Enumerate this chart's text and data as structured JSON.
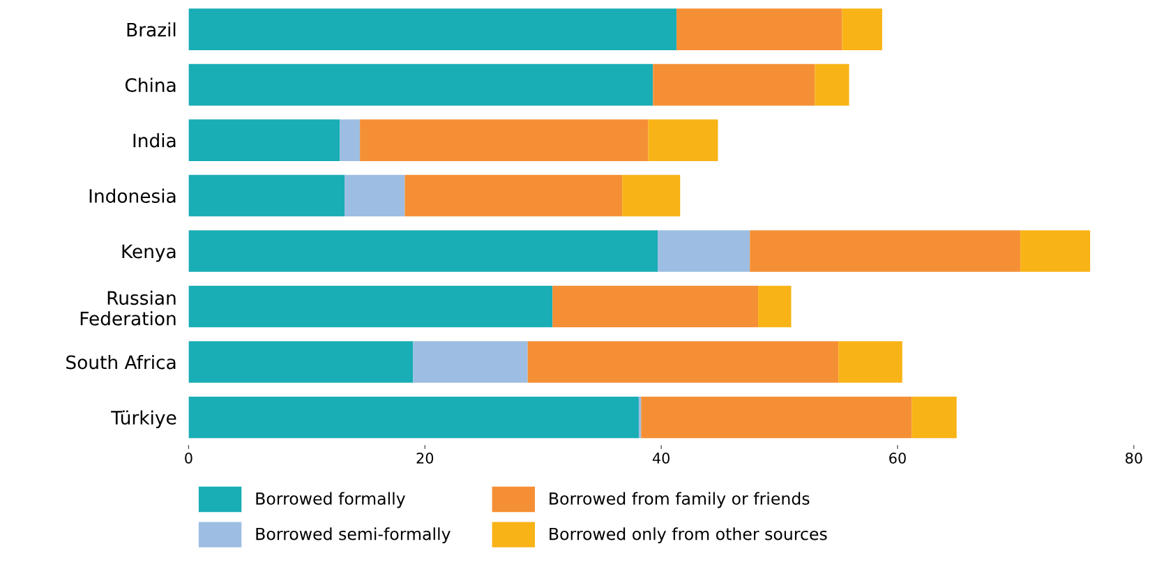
{
  "chart_data": {
    "type": "bar",
    "orientation": "horizontal",
    "stacked": true,
    "categories": [
      "Brazil",
      "China",
      "India",
      "Indonesia",
      "Kenya",
      "Russian\nFederation",
      "South Africa",
      "Türkiye"
    ],
    "series": [
      {
        "name": "Borrowed formally",
        "color": "#19adb5",
        "values": [
          41.3,
          39.3,
          12.8,
          13.2,
          39.7,
          30.8,
          19.0,
          38.1
        ]
      },
      {
        "name": "Borrowed semi-formally",
        "color": "#9dbde2",
        "values": [
          0,
          0,
          1.7,
          5.1,
          7.8,
          0,
          9.7,
          0.2
        ]
      },
      {
        "name": "Borrowed from family or friends",
        "color": "#f58f35",
        "values": [
          14.0,
          13.7,
          24.4,
          18.4,
          22.9,
          17.4,
          26.3,
          22.9
        ]
      },
      {
        "name": "Borrowed only from other sources",
        "color": "#f8b316",
        "values": [
          3.4,
          2.9,
          5.9,
          4.9,
          5.9,
          2.8,
          5.4,
          3.8
        ]
      }
    ],
    "xlim": [
      0,
      80
    ],
    "xticks": [
      0,
      20,
      40,
      60,
      80
    ],
    "grid": false,
    "legend": "bottom"
  }
}
